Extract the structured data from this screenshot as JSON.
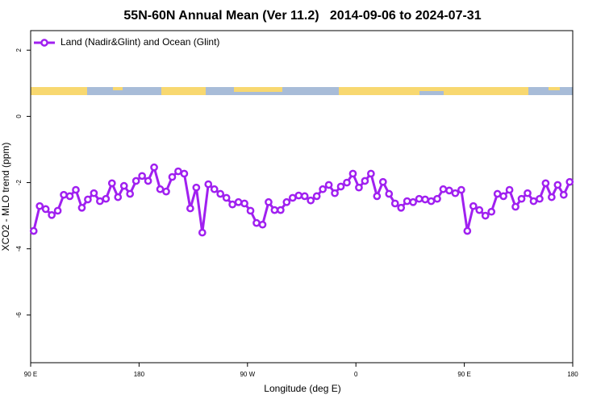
{
  "chart_data": {
    "type": "line",
    "title": "55N-60N Annual Mean (Ver 11.2)   2014-09-06 to 2024-07-31",
    "xlabel": "Longitude (deg E)",
    "ylabel": "XCO2 - MLO trend (ppm)",
    "x": [
      92.5,
      97.5,
      102.5,
      107.5,
      112.5,
      117.5,
      122.5,
      127.5,
      132.5,
      137.5,
      142.5,
      147.5,
      152.5,
      157.5,
      162.5,
      167.5,
      172.5,
      177.5,
      182.5,
      187.5,
      192.5,
      197.5,
      202.5,
      207.5,
      212.5,
      217.5,
      222.5,
      227.5,
      232.5,
      237.5,
      242.5,
      247.5,
      252.5,
      257.5,
      262.5,
      267.5,
      272.5,
      277.5,
      282.5,
      287.5,
      292.5,
      297.5,
      302.5,
      307.5,
      312.5,
      317.5,
      322.5,
      327.5,
      332.5,
      337.5,
      342.5,
      347.5,
      352.5,
      357.5,
      362.5,
      367.5,
      372.5,
      377.5,
      382.5,
      387.5,
      392.5,
      397.5,
      402.5,
      407.5,
      412.5,
      417.5,
      422.5,
      427.5,
      432.5,
      437.5,
      442.5,
      447.5,
      452.5,
      457.5,
      462.5,
      467.5,
      472.5,
      477.5,
      482.5,
      487.5,
      492.5,
      497.5,
      502.5,
      507.5,
      512.5,
      517.5,
      522.5,
      527.5,
      532.5,
      537.5
    ],
    "series": [
      {
        "name": "Land (Nadir&Glint) and Ocean (Glint)",
        "color": "#a020f0",
        "values": [
          -3.46,
          -2.71,
          -2.8,
          -2.98,
          -2.85,
          -2.37,
          -2.41,
          -2.22,
          -2.76,
          -2.51,
          -2.32,
          -2.56,
          -2.49,
          -2.02,
          -2.44,
          -2.1,
          -2.34,
          -1.95,
          -1.8,
          -1.95,
          -1.54,
          -2.2,
          -2.27,
          -1.83,
          -1.66,
          -1.73,
          -2.78,
          -2.15,
          -3.51,
          -2.05,
          -2.2,
          -2.34,
          -2.46,
          -2.66,
          -2.59,
          -2.63,
          -2.85,
          -3.22,
          -3.27,
          -2.59,
          -2.83,
          -2.83,
          -2.59,
          -2.46,
          -2.39,
          -2.41,
          -2.54,
          -2.41,
          -2.2,
          -2.07,
          -2.32,
          -2.12,
          -2.0,
          -1.73,
          -2.15,
          -1.95,
          -1.73,
          -2.41,
          -1.98,
          -2.34,
          -2.63,
          -2.76,
          -2.56,
          -2.59,
          -2.49,
          -2.51,
          -2.56,
          -2.49,
          -2.2,
          -2.24,
          -2.32,
          -2.22,
          -3.46,
          -2.71,
          -2.83,
          -3.0,
          -2.88,
          -2.34,
          -2.41,
          -2.22,
          -2.73,
          -2.49,
          -2.32,
          -2.56,
          -2.49,
          -2.02,
          -2.44,
          -2.07,
          -2.37,
          -1.98
        ]
      }
    ],
    "xlim": [
      90,
      540
    ],
    "xticks": [
      {
        "value": 90,
        "label": "90 E"
      },
      180,
      {
        "value": 270,
        "label": "90 W"
      },
      {
        "value": 360,
        "label": "0"
      },
      {
        "value": 450,
        "label": "90 E"
      },
      {
        "value": 540,
        "label": "180"
      }
    ],
    "ylim": [
      -7.44,
      2.59
    ],
    "yticks": [
      -6,
      -4,
      -2,
      0,
      2
    ],
    "legend": "upper left"
  }
}
